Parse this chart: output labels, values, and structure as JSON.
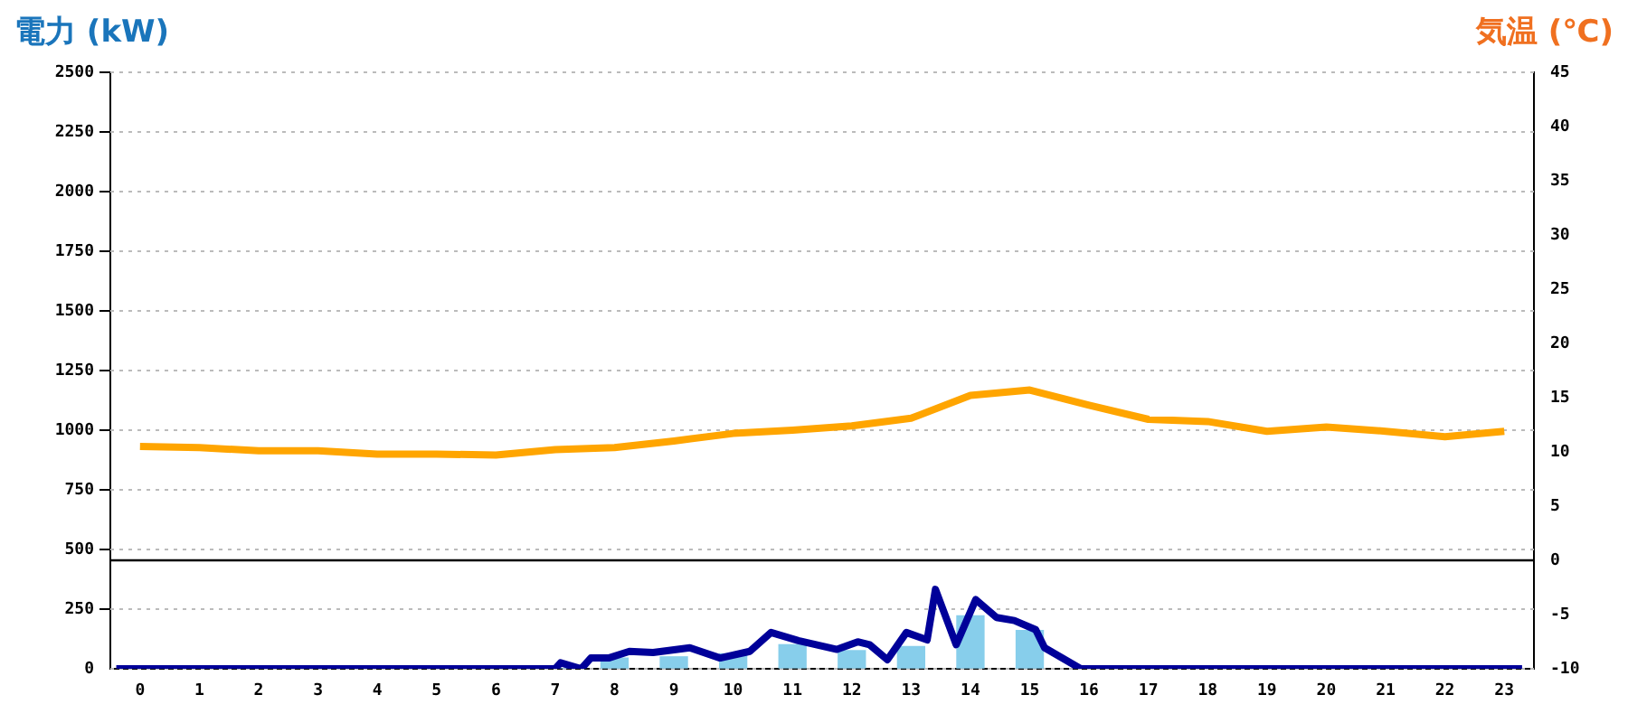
{
  "chart_data": {
    "type": "bar",
    "ylabel": "電力 (kW)",
    "y2label": "気温 (℃)",
    "x": [
      0,
      1,
      2,
      3,
      4,
      5,
      6,
      7,
      8,
      9,
      10,
      11,
      12,
      13,
      14,
      15,
      16,
      17,
      18,
      19,
      20,
      21,
      22,
      23
    ],
    "series": [
      {
        "color": "#87ceeb",
        "axis": "y",
        "values": [
          0,
          0,
          0,
          0,
          0,
          0,
          0,
          0,
          45,
          50,
          63,
          101,
          76,
          93,
          222,
          160,
          0,
          0,
          0,
          0,
          0,
          0,
          0,
          0
        ]
      },
      {
        "type": "line",
        "color": "#000099",
        "axis": "y",
        "x": [
          -0.4,
          7.0,
          7.09,
          7.44,
          7.6,
          7.9,
          8.25,
          8.65,
          9.27,
          9.78,
          10.28,
          10.64,
          11.1,
          11.75,
          12.1,
          12.3,
          12.6,
          12.92,
          13.27,
          13.41,
          13.76,
          14.09,
          14.44,
          14.74,
          15.1,
          15.25,
          15.86,
          23.3
        ],
        "values": [
          0,
          0,
          25,
          0,
          45,
          45,
          73,
          68,
          88,
          45,
          73,
          152,
          118,
          81,
          113,
          101,
          38,
          152,
          121,
          333,
          101,
          290,
          215,
          202,
          164,
          88,
          0,
          0
        ]
      },
      {
        "type": "line",
        "color": "#ffa500",
        "axis": "y2",
        "values": [
          10.5,
          10.4,
          10.1,
          10.1,
          9.8,
          9.8,
          9.7,
          10.2,
          10.4,
          11.0,
          11.7,
          12.0,
          12.4,
          13.1,
          15.2,
          15.7,
          14.3,
          13.0,
          12.8,
          11.9,
          12.3,
          11.9,
          11.4,
          11.9
        ]
      }
    ],
    "xlim": [
      -0.5,
      23.5
    ],
    "xticks": [
      0,
      1,
      2,
      3,
      4,
      5,
      6,
      7,
      8,
      9,
      10,
      11,
      12,
      13,
      14,
      15,
      16,
      17,
      18,
      19,
      20,
      21,
      22,
      23
    ],
    "ylim": [
      0,
      2500
    ],
    "yticks": [
      0,
      250,
      500,
      750,
      1000,
      1250,
      1500,
      1750,
      2000,
      2250,
      2500
    ],
    "y2lim": [
      -10,
      45
    ],
    "y2ticks": [
      -10,
      -5,
      0,
      5,
      10,
      15,
      20,
      25,
      30,
      35,
      40,
      45
    ],
    "ref_lines": [
      {
        "axis": "y2",
        "value": 0,
        "color": "#000000"
      }
    ],
    "grid": "y",
    "legend": false,
    "marker": "none",
    "line_style": "solid"
  }
}
